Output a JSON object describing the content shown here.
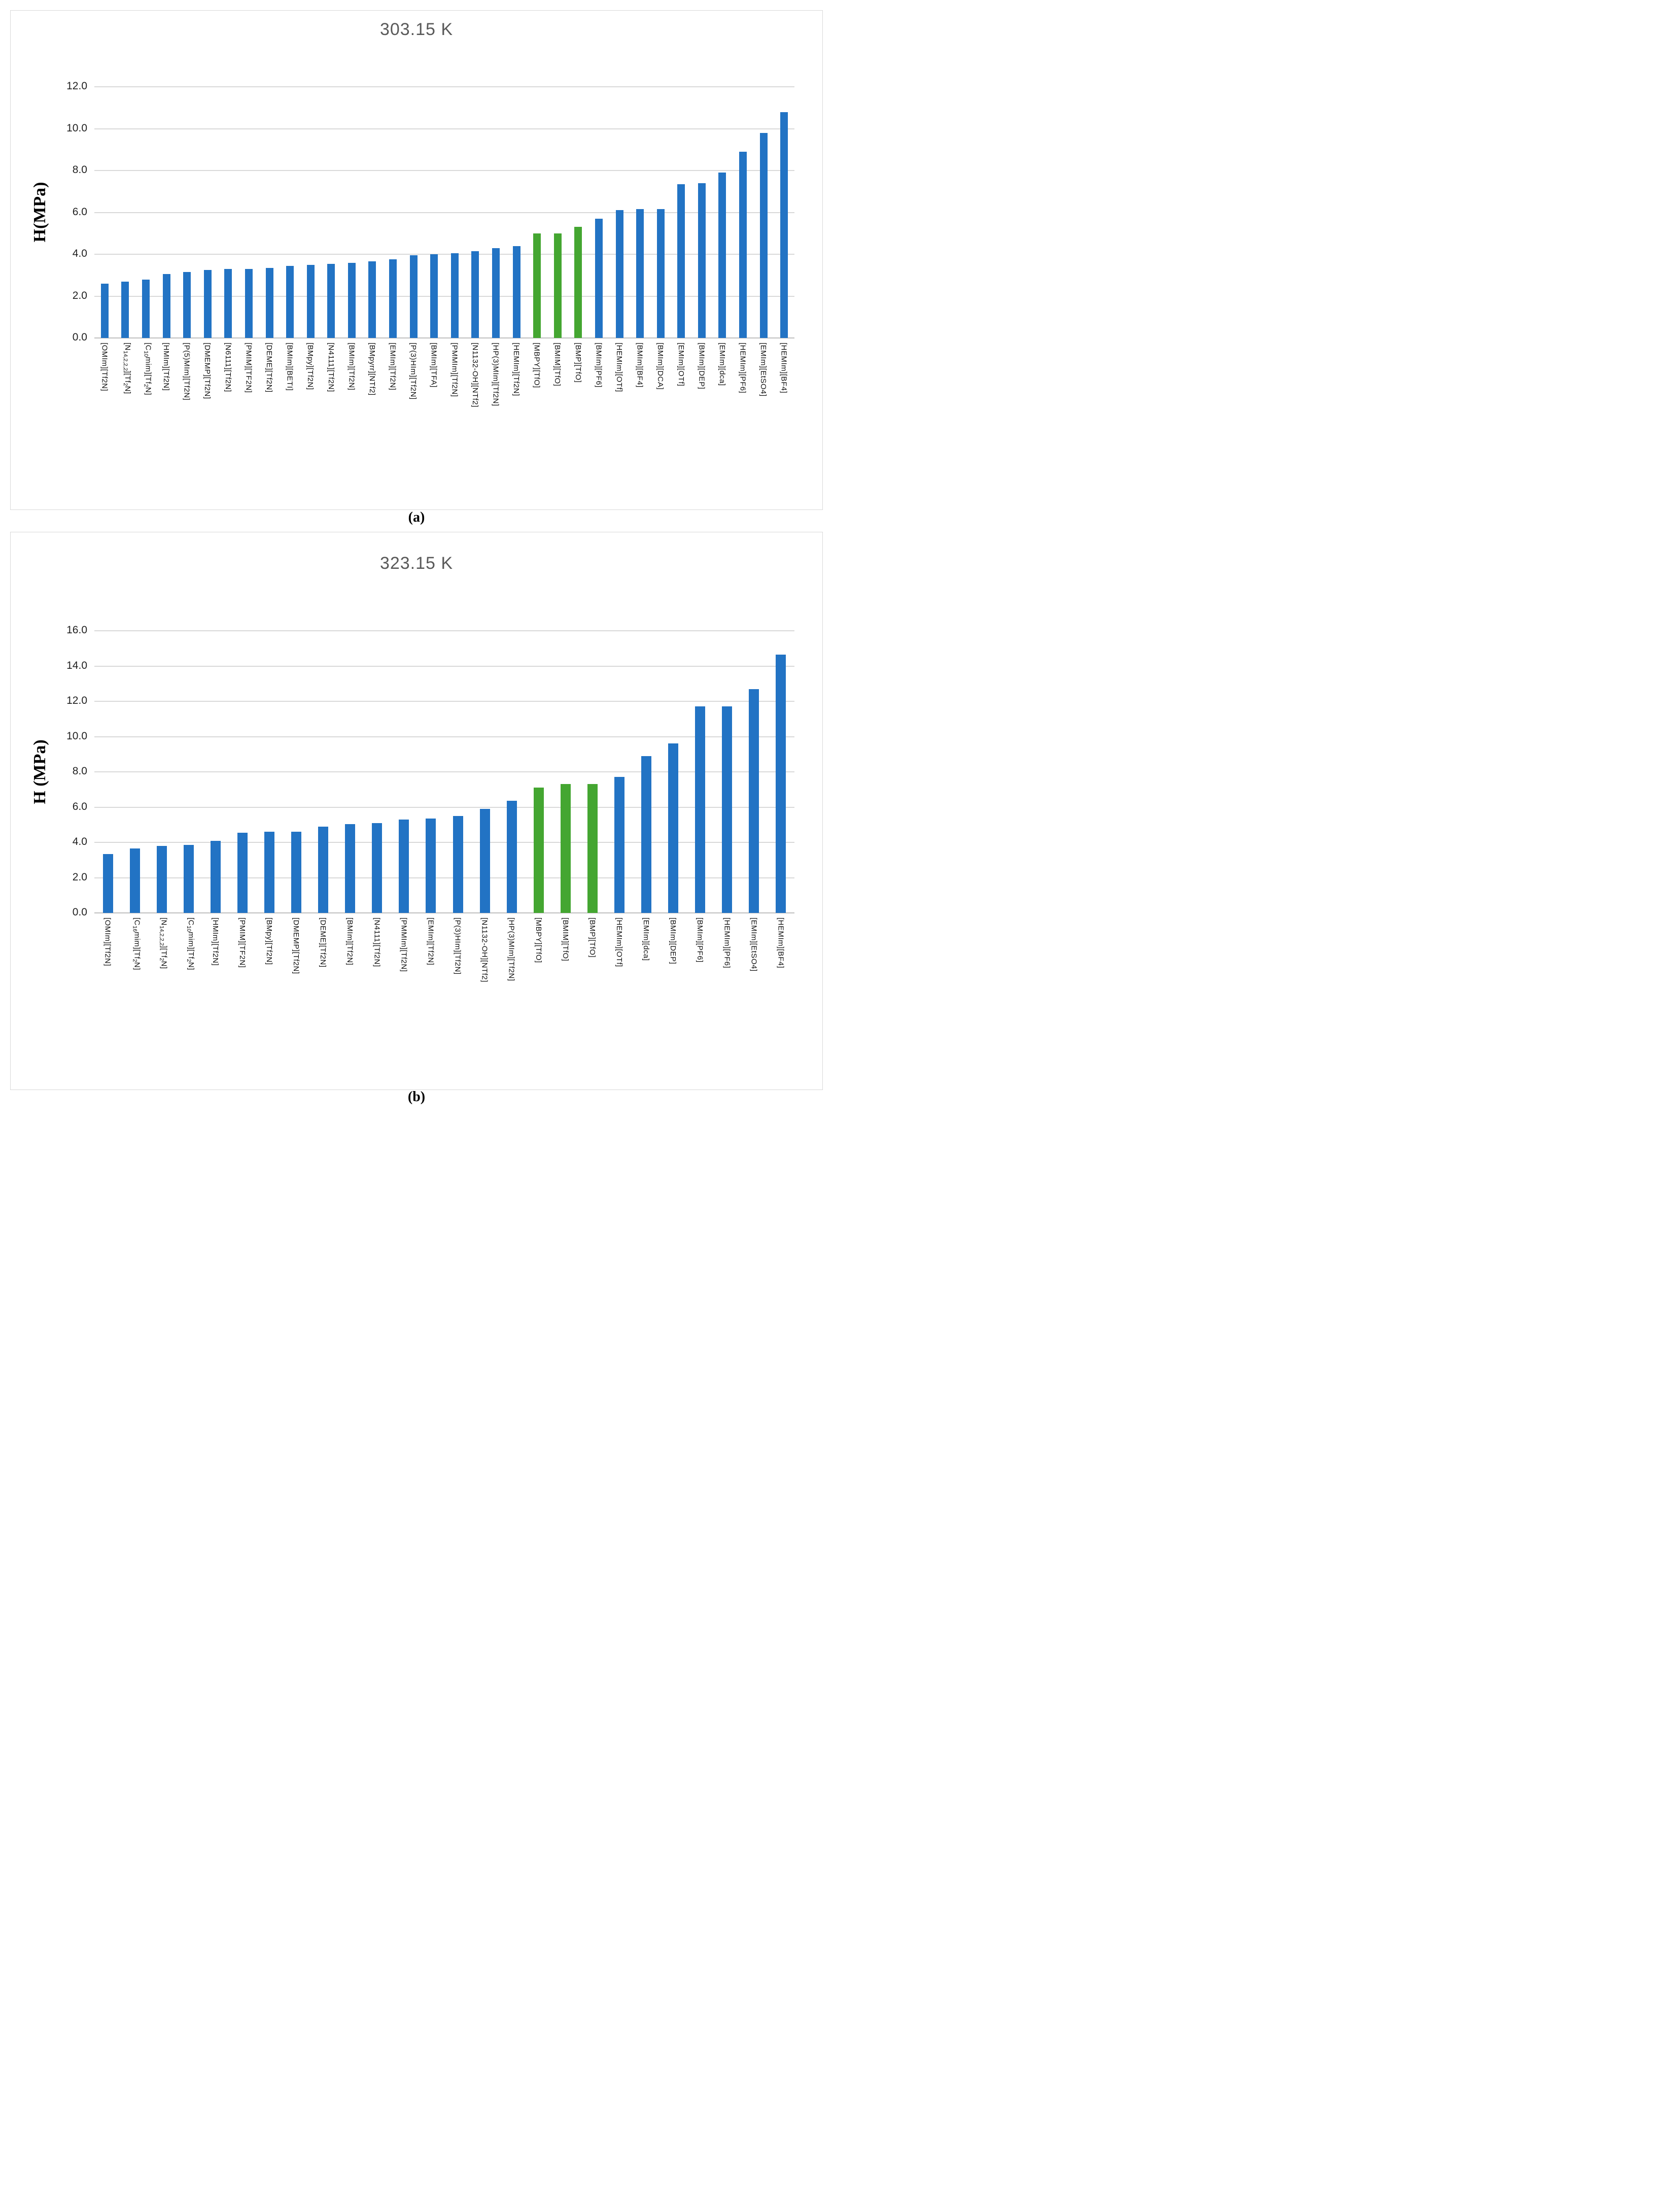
{
  "chart_data": [
    {
      "type": "bar",
      "panel": "a",
      "caption": "(a)",
      "title": "303.15 K",
      "ylabel": "H(MPa)",
      "xlabel": "",
      "ylim": [
        0,
        12
      ],
      "ytick_step": 2,
      "yticks": [
        "0.0",
        "2.0",
        "4.0",
        "6.0",
        "8.0",
        "10.0",
        "12.0"
      ],
      "grid": true,
      "legend_position": "none",
      "bar_color": "#2273c4",
      "highlight_color": "#44a631",
      "highlight_indices": [
        21,
        22,
        23
      ],
      "categories": [
        "[OMIm][Tf2N]",
        "[N_{14,2,2,2}][Tf_{2}N]",
        "[C_{10}mim][Tf_{2}N]",
        "[HMIm][Tf2N]",
        "[P(5)MIm][Tf2N]",
        "[DMEMP][Tf2N]",
        "[N6111][Tf2N]",
        "[PMIM][TF2N]",
        "[DEME][Tf2N]",
        "[BMIm][BETI]",
        "[BMpy][Tf2N]",
        "[N4111][Tf2N]",
        "[BMIm][Tf2N]",
        "[BMpyrr][NTf2]",
        "[EMIm][Tf2N]",
        "[P(3)HIm][Tf2N]",
        "[BMIm][TFA]",
        "[PMMIm][Tf2N]",
        "[N1132-OH][NTf2]",
        "[HP(3)MIm][Tf2N]",
        "[HEMIm][Tf2N]",
        "[MBPY][TfO]",
        "[BMIM][TfO]",
        "[BMP][TfO]",
        "[BMIm][PF6]",
        "[HEMIm][OTf]",
        "[BMIm][BF4]",
        "[BMIm][DCA]",
        "[EMIm][OTf]",
        "[BMIm][DEP]",
        "[EMIm][dca]",
        "[HEMIm][PF6]",
        "[EMIm][EtSO4]",
        "[HEMIm][BF4]"
      ],
      "values": [
        2.6,
        2.7,
        2.8,
        3.05,
        3.15,
        3.25,
        3.3,
        3.3,
        3.35,
        3.45,
        3.5,
        3.55,
        3.6,
        3.65,
        3.75,
        3.95,
        4.0,
        4.05,
        4.15,
        4.3,
        4.4,
        5.0,
        5.0,
        5.3,
        5.7,
        6.1,
        6.15,
        6.15,
        7.35,
        7.4,
        7.9,
        8.9,
        9.8,
        10.8
      ]
    },
    {
      "type": "bar",
      "panel": "b",
      "caption": "(b)",
      "title": "323.15 K",
      "ylabel": "H (MPa)",
      "xlabel": "",
      "ylim": [
        0,
        16
      ],
      "ytick_step": 2,
      "yticks": [
        "0.0",
        "2.0",
        "4.0",
        "6.0",
        "8.0",
        "10.0",
        "12.0",
        "14.0",
        "16.0"
      ],
      "grid": true,
      "legend_position": "none",
      "bar_color": "#2273c4",
      "highlight_color": "#44a631",
      "highlight_indices": [
        16,
        17,
        18
      ],
      "categories": [
        "[OMIm][Tf2N]",
        "[C_{16}mim][Tf_{2}N]",
        "[N_{14,2,2,2}][Tf_{2}N]",
        "[C_{10}mim][Tf_{2}N]",
        "[HMIm][Tf2N]",
        "[PMIM][TF2N]",
        "[BMpy][Tf2N]",
        "[DMEMP][Tf2N]",
        "[DEME][Tf2N]",
        "[BMIm][Tf2N]",
        "[N4111][Tf2N]",
        "[PMMIm][Tf2N]",
        "[EMIm][Tf2N]",
        "[P(3)HIm][Tf2N]",
        "[N1132-OH][NTf2]",
        "[HP(3)MIm][Tf2N]",
        "[MBPY][TfO]",
        "[BMIM][TfO]",
        "[BMP][TfO]",
        "[HEMIm][OTf]",
        "[EMIm][dca]",
        "[BMIm][DEP]",
        "[BMIm][PF6]",
        "[HEMIm][PF6]",
        "[EMIm][EtSO4]",
        "[HEMIm][BF4]"
      ],
      "values": [
        3.35,
        3.65,
        3.8,
        3.85,
        4.1,
        4.55,
        4.6,
        4.6,
        4.9,
        5.05,
        5.1,
        5.3,
        5.35,
        5.5,
        5.9,
        6.35,
        7.1,
        7.3,
        7.3,
        7.7,
        8.9,
        9.6,
        11.7,
        11.7,
        12.7,
        14.65
      ]
    }
  ],
  "colors": {
    "bar_blue": "#2273c4",
    "bar_green": "#44a631",
    "gridline": "#d9d9d9",
    "axis_line": "#c0c0c0",
    "title_gray": "#595959",
    "text_black": "#111111",
    "panel_border": "#d9d9d9"
  }
}
